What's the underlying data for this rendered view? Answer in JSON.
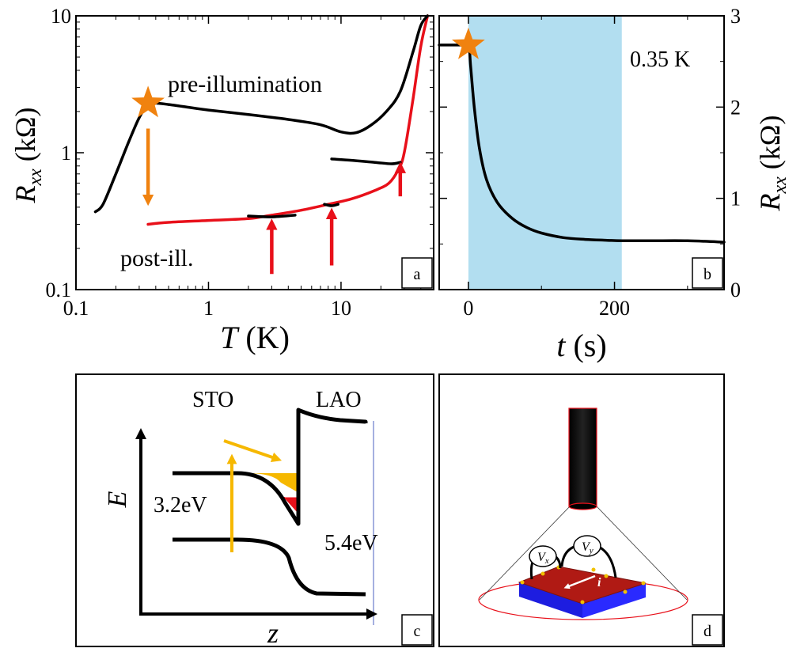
{
  "panels": {
    "a": {
      "label": "a",
      "ylabel_main": "R",
      "ylabel_sub": "xx",
      "ylabel_unit": " (kΩ)",
      "xlabel_var": "T",
      "xlabel_unit": " (K)",
      "xticks": [
        "0.1",
        "1",
        "10"
      ],
      "yticks": [
        "0.1",
        "1",
        "10"
      ],
      "pre_label": "pre-illumination",
      "post_label": "post-ill."
    },
    "b": {
      "label": "b",
      "ylabel_main": "R",
      "ylabel_sub": "xx",
      "ylabel_unit": " (kΩ)",
      "xlabel_var": "t",
      "xlabel_unit": " (s)",
      "xticks": [
        "0",
        "200"
      ],
      "yticks": [
        "0",
        "1",
        "2",
        "3"
      ],
      "temp_label": "0.35 K"
    },
    "c": {
      "label": "c",
      "sto": "STO",
      "lao": "LAO",
      "gap_sto": "3.2eV",
      "gap_lao": "5.4eV",
      "axis_e": "E",
      "axis_z": "z"
    },
    "d": {
      "label": "d",
      "vx_main": "V",
      "vx_sub": "x",
      "vy_main": "V",
      "vy_sub": "y",
      "current": "i"
    }
  },
  "colors": {
    "pre": "#000000",
    "post": "#e8101a",
    "arrow_pre": "#f0820f",
    "star": "#f0820f",
    "illum": "#b2def0",
    "band_fill": "#f6b800",
    "substrate": "#1d1de0",
    "film": "#b01a14"
  },
  "chart_data": [
    {
      "type": "line",
      "panel": "a",
      "xscale": "log",
      "yscale": "log",
      "xlim": [
        0.1,
        50
      ],
      "ylim": [
        0.1,
        10
      ],
      "xlabel": "T (K)",
      "ylabel": "Rxx (kΩ)",
      "series": [
        {
          "name": "pre-illumination",
          "x": [
            0.14,
            0.16,
            0.2,
            0.25,
            0.3,
            0.35,
            0.4,
            0.5,
            0.7,
            1,
            2,
            4,
            7,
            10,
            13,
            17,
            22,
            28,
            35,
            40,
            45
          ],
          "y": [
            0.37,
            0.42,
            0.7,
            1.2,
            1.8,
            2.25,
            2.3,
            2.25,
            2.15,
            2.05,
            1.9,
            1.75,
            1.6,
            1.42,
            1.4,
            1.6,
            2.0,
            2.8,
            5.5,
            8.5,
            10
          ]
        },
        {
          "name": "post-ill.",
          "x": [
            0.35,
            0.5,
            1,
            2,
            3,
            5,
            8,
            12,
            18,
            23,
            27,
            30,
            35,
            40,
            45
          ],
          "y": [
            0.3,
            0.31,
            0.32,
            0.33,
            0.35,
            0.38,
            0.42,
            0.46,
            0.53,
            0.6,
            0.75,
            1.0,
            2.5,
            6,
            10
          ]
        },
        {
          "name": "",
          "x": [
            8.5,
            12,
            18,
            24,
            28
          ],
          "y": [
            0.9,
            0.88,
            0.85,
            0.83,
            0.85
          ]
        },
        {
          "name": "",
          "x": [
            2,
            3,
            4.5
          ],
          "y": [
            0.345,
            0.34,
            0.35
          ]
        },
        {
          "name": "",
          "x": [
            7.5,
            8.5,
            9.5
          ],
          "y": [
            0.42,
            0.41,
            0.42
          ]
        }
      ],
      "markers": [
        {
          "type": "star",
          "x": 0.35,
          "y": 2.3
        }
      ],
      "annotations": [
        {
          "type": "arrow-down",
          "x": 0.35,
          "y_from": 1.5,
          "y_to": 0.45,
          "color": "orange"
        },
        {
          "type": "arrow-up",
          "x": 3,
          "y_from": 0.13,
          "y_to": 0.3,
          "color": "red"
        },
        {
          "type": "arrow-up",
          "x": 8.5,
          "y_from": 0.15,
          "y_to": 0.36,
          "color": "red"
        },
        {
          "type": "arrow-up",
          "x": 28,
          "y_from": 0.48,
          "y_to": 0.78,
          "color": "red"
        }
      ]
    },
    {
      "type": "line",
      "panel": "b",
      "xlim": [
        -40,
        350
      ],
      "ylim": [
        0,
        3
      ],
      "xlabel": "t (s)",
      "ylabel": "Rxx (kΩ)",
      "illumination_interval": [
        0,
        210
      ],
      "series": [
        {
          "name": "",
          "x": [
            -40,
            -10,
            0,
            3,
            8,
            15,
            25,
            40,
            60,
            80,
            100,
            130,
            160,
            190,
            210,
            250,
            300,
            350
          ],
          "y": [
            2.68,
            2.68,
            2.68,
            2.45,
            2.0,
            1.55,
            1.2,
            0.95,
            0.78,
            0.68,
            0.62,
            0.57,
            0.55,
            0.54,
            0.535,
            0.535,
            0.535,
            0.52
          ]
        }
      ],
      "markers": [
        {
          "type": "star",
          "x": 0,
          "y": 2.68
        }
      ]
    }
  ]
}
